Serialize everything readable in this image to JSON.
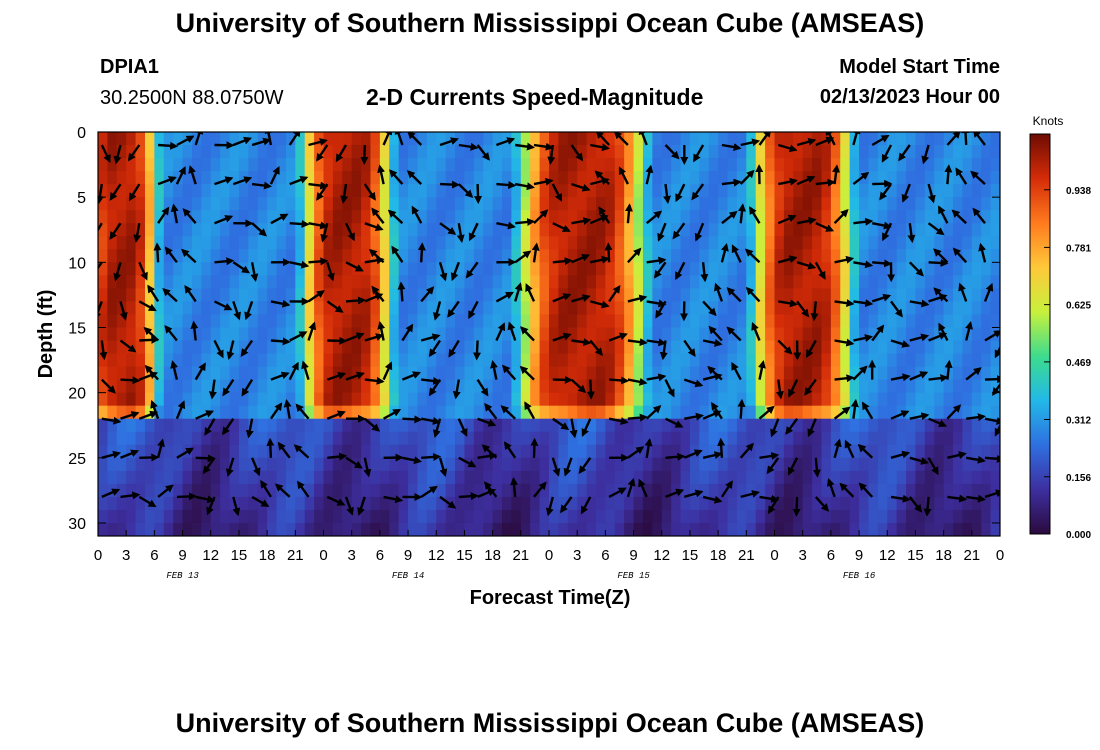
{
  "header": {
    "title": "University of Southern Mississippi Ocean Cube (AMSEAS)",
    "station": "DPIA1",
    "coords": "30.2500N  88.0750W",
    "plot_title": "2-D Currents Speed-Magnitude",
    "start_label": "Model Start Time",
    "start_value": "02/13/2023 Hour 00"
  },
  "footer": {
    "title": "University of Southern Mississippi Ocean Cube (AMSEAS)"
  },
  "chart_data": {
    "type": "heatmap",
    "title": "2-D Currents Speed-Magnitude",
    "xlabel": "Forecast Time(Z)",
    "ylabel": "Depth (ft)",
    "x_ticks": [
      "0",
      "3",
      "6",
      "9",
      "12",
      "15",
      "18",
      "21",
      "0",
      "3",
      "6",
      "9",
      "12",
      "15",
      "18",
      "21",
      "0",
      "3",
      "6",
      "9",
      "12",
      "15",
      "18",
      "21",
      "0",
      "3",
      "6",
      "9",
      "12",
      "15",
      "18",
      "21",
      "0"
    ],
    "date_labels": [
      "FEB 13",
      "FEB 14",
      "FEB 15",
      "FEB 16"
    ],
    "y_ticks": [
      "0",
      "5",
      "10",
      "15",
      "20",
      "25",
      "30"
    ],
    "ylim": [
      0,
      31
    ],
    "xlim_hours": [
      0,
      96
    ],
    "colorbar": {
      "title": "Knots",
      "ticks": [
        "0.938",
        "0.781",
        "0.625",
        "0.469",
        "0.312",
        "0.156",
        "0.000"
      ],
      "range": [
        0,
        1.09
      ],
      "colors": [
        "#2b0a3d",
        "#3d2fa0",
        "#2f6fe0",
        "#22b8e8",
        "#3ddc8e",
        "#c8f03c",
        "#ffc83a",
        "#ff7a1e",
        "#d42c08",
        "#6e0c02"
      ]
    },
    "grid": false,
    "strong_current_bands_hours": [
      [
        0,
        5
      ],
      [
        23,
        30
      ],
      [
        46,
        57
      ],
      [
        71,
        79
      ]
    ]
  }
}
